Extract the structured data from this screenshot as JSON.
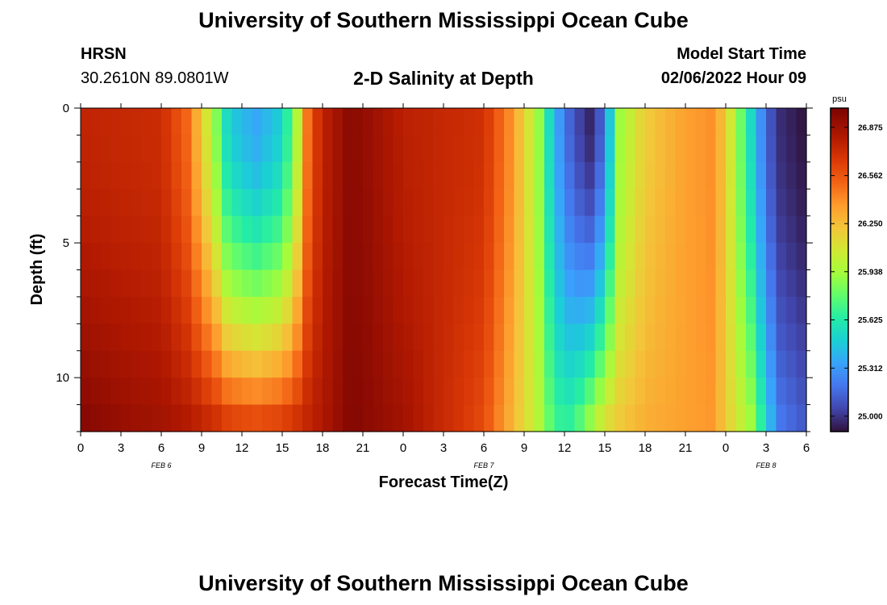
{
  "header": {
    "title": "University of Southern Mississippi Ocean Cube",
    "station": "HRSN",
    "coordinates": "30.2610N  89.0801W",
    "chart_title": "2-D Salinity at Depth",
    "model_start_label": "Model Start Time",
    "model_start_value": "02/06/2022 Hour 09"
  },
  "footer": {
    "title": "University of Southern Mississippi Ocean Cube"
  },
  "chart_data": {
    "type": "heatmap",
    "title": "2-D Salinity at Depth",
    "xlabel": "Forecast Time(Z)",
    "ylabel": "Depth (ft)",
    "x_tick_labels": [
      "0",
      "3",
      "6",
      "9",
      "12",
      "15",
      "18",
      "21",
      "0",
      "3",
      "6",
      "9",
      "12",
      "15",
      "18",
      "21",
      "0",
      "3",
      "6"
    ],
    "x_date_labels": [
      "FEB 6",
      "FEB 7",
      "FEB 8"
    ],
    "x_range_hours": [
      0,
      54
    ],
    "y_ticks": [
      0,
      5,
      10
    ],
    "y_range_ft": [
      0,
      12
    ],
    "y_inverted": true,
    "colorbar": {
      "unit": "psu",
      "ticks": [
        "26.875",
        "26.562",
        "26.250",
        "25.938",
        "25.625",
        "25.312",
        "25.000"
      ],
      "range": [
        24.9,
        27.0
      ],
      "colormap": "turbo"
    },
    "depth_levels_ft": [
      0.5,
      1.5,
      2.5,
      3.5,
      4.5,
      5.5,
      6.5,
      7.5,
      8.5,
      9.5,
      10.5,
      11.5
    ],
    "surface_salinity_profile": {
      "hours": [
        0,
        3,
        6,
        8,
        10,
        11,
        13,
        15,
        16,
        17,
        18,
        20,
        21,
        24,
        30,
        32,
        34,
        35,
        36,
        37,
        38,
        39,
        40,
        42,
        45,
        47,
        48,
        50,
        51,
        52,
        54
      ],
      "psu": [
        26.76,
        26.74,
        26.72,
        26.5,
        25.9,
        25.5,
        25.35,
        25.5,
        25.9,
        26.55,
        26.76,
        26.95,
        26.92,
        26.78,
        26.7,
        26.4,
        25.95,
        25.5,
        25.2,
        25.05,
        24.95,
        25.2,
        25.9,
        26.2,
        26.35,
        26.4,
        26.2,
        25.5,
        25.15,
        24.98,
        24.9
      ]
    },
    "bottom_salinity_profile": {
      "hours": [
        0,
        3,
        6,
        8,
        10,
        11,
        13,
        15,
        16,
        17,
        18,
        20,
        21,
        24,
        30,
        32,
        34,
        35,
        36,
        37,
        38,
        39,
        40,
        42,
        45,
        47,
        48,
        50,
        51,
        52,
        54
      ],
      "psu": [
        26.96,
        26.9,
        26.86,
        26.8,
        26.7,
        26.62,
        26.58,
        26.62,
        26.68,
        26.76,
        26.82,
        26.96,
        26.95,
        26.86,
        26.6,
        26.3,
        26.0,
        25.75,
        25.62,
        25.72,
        25.9,
        26.1,
        26.2,
        26.3,
        26.35,
        26.38,
        26.2,
        25.9,
        25.5,
        25.2,
        25.1
      ]
    }
  }
}
